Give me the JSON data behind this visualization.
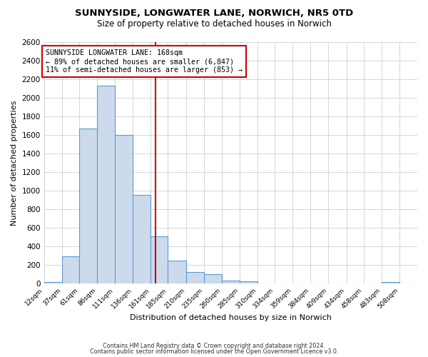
{
  "title": "SUNNYSIDE, LONGWATER LANE, NORWICH, NR5 0TD",
  "subtitle": "Size of property relative to detached houses in Norwich",
  "xlabel": "Distribution of detached houses by size in Norwich",
  "ylabel": "Number of detached properties",
  "bin_labels": [
    "12sqm",
    "37sqm",
    "61sqm",
    "86sqm",
    "111sqm",
    "136sqm",
    "161sqm",
    "185sqm",
    "210sqm",
    "235sqm",
    "260sqm",
    "285sqm",
    "310sqm",
    "334sqm",
    "359sqm",
    "384sqm",
    "409sqm",
    "434sqm",
    "458sqm",
    "483sqm",
    "508sqm"
  ],
  "bin_edges": [
    12,
    37,
    61,
    86,
    111,
    136,
    161,
    185,
    210,
    235,
    260,
    285,
    310,
    334,
    359,
    384,
    409,
    434,
    458,
    483,
    508
  ],
  "bar_heights": [
    20,
    295,
    1670,
    2130,
    1600,
    960,
    510,
    250,
    125,
    100,
    35,
    25,
    5,
    5,
    5,
    5,
    3,
    2,
    2,
    18,
    0
  ],
  "bar_color": "#cddaeb",
  "bar_edge_color": "#5b9bd5",
  "vline_x": 168,
  "vline_color": "#cc0000",
  "ylim": [
    0,
    2600
  ],
  "yticks": [
    0,
    200,
    400,
    600,
    800,
    1000,
    1200,
    1400,
    1600,
    1800,
    2000,
    2200,
    2400,
    2600
  ],
  "annotation_title": "SUNNYSIDE LONGWATER LANE: 168sqm",
  "annotation_line1": "← 89% of detached houses are smaller (6,847)",
  "annotation_line2": "11% of semi-detached houses are larger (853) →",
  "annotation_box_color": "#cc0000",
  "footer1": "Contains HM Land Registry data © Crown copyright and database right 2024.",
  "footer2": "Contains public sector information licensed under the Open Government Licence v3.0.",
  "bg_color": "#ffffff",
  "grid_color": "#c8d0dc"
}
